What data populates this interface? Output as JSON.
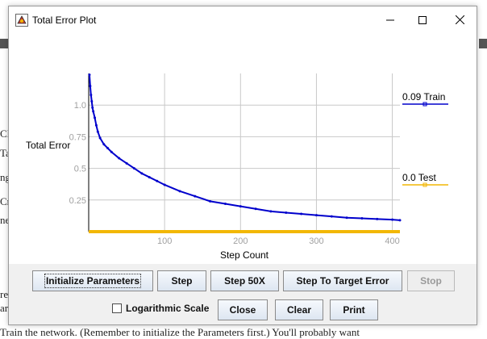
{
  "window": {
    "title": "Total Error Plot"
  },
  "background_text": [
    "Cl",
    "Ta",
    "ng",
    "Cr",
    "ne",
    "rep",
    "ar",
    "Train the network. (Remember to initialize the Parameters first.) You'll probably want"
  ],
  "chart_data": {
    "type": "line",
    "xlabel": "Step Count",
    "ylabel": "Total Error",
    "xlim": [
      0,
      410
    ],
    "ylim": [
      0,
      1.25
    ],
    "xticks": [
      100,
      200,
      300,
      400
    ],
    "yticks": [
      0.25,
      0.5,
      0.75,
      1.0
    ],
    "xtick_labels": [
      "100",
      "200",
      "300",
      "400"
    ],
    "ytick_labels": [
      "0.25",
      "0.5",
      "0.75",
      "1.0"
    ],
    "grid": true,
    "legend": [
      {
        "label": "0.09 Train",
        "color": "#0000cc"
      },
      {
        "label": "0.0 Test",
        "color": "#f2b705"
      }
    ],
    "series": [
      {
        "name": "Train",
        "color": "#0000cc",
        "x": [
          1,
          2,
          3,
          4,
          5,
          6,
          8,
          10,
          12,
          15,
          20,
          25,
          30,
          40,
          50,
          60,
          70,
          80,
          90,
          100,
          120,
          140,
          160,
          180,
          200,
          220,
          240,
          260,
          280,
          300,
          320,
          340,
          360,
          380,
          400,
          410
        ],
        "y": [
          1.24,
          1.15,
          1.08,
          1.03,
          0.98,
          0.95,
          0.9,
          0.84,
          0.79,
          0.74,
          0.69,
          0.66,
          0.63,
          0.58,
          0.54,
          0.5,
          0.46,
          0.43,
          0.4,
          0.37,
          0.32,
          0.28,
          0.24,
          0.22,
          0.2,
          0.18,
          0.16,
          0.15,
          0.14,
          0.13,
          0.12,
          0.11,
          0.105,
          0.1,
          0.095,
          0.09
        ]
      },
      {
        "name": "Test",
        "color": "#f2b705",
        "x": [
          0,
          410
        ],
        "y": [
          0,
          0
        ]
      }
    ]
  },
  "buttons": {
    "initialize": "Initialize Parameters",
    "step": "Step",
    "step50": "Step 50X",
    "step_target": "Step To Target Error",
    "stop": "Stop",
    "close": "Close",
    "clear": "Clear",
    "print": "Print"
  },
  "checkbox": {
    "log_scale_label": "Logarithmic Scale",
    "log_scale_checked": false
  }
}
